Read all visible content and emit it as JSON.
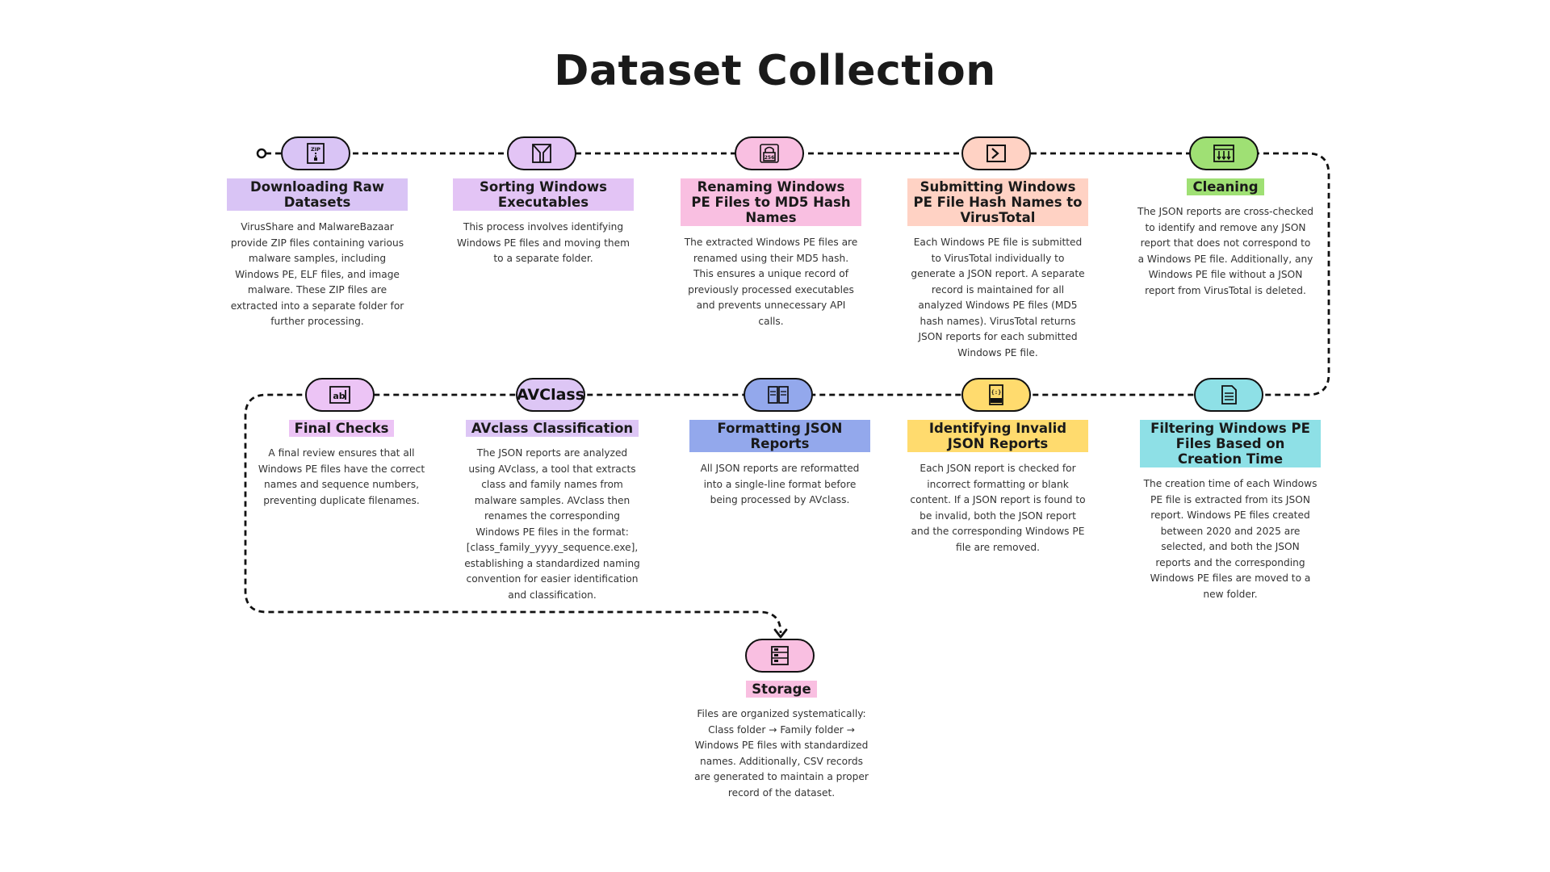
{
  "title": "Dataset Collection",
  "steps": [
    {
      "label": "Downloading Raw Datasets",
      "icon": "zip-file-icon",
      "color": "#d9c4f5",
      "desc": "VirusShare and MalwareBazaar provide ZIP files containing various malware samples, including Windows PE, ELF files, and image malware. These ZIP files are extracted into a separate folder for further processing."
    },
    {
      "label": "Sorting Windows Executables",
      "icon": "funnel-icon",
      "color": "#e3c4f5",
      "desc": "This process involves identifying Windows PE files and moving them to a separate folder."
    },
    {
      "label": "Renaming Windows PE Files to MD5 Hash Names",
      "icon": "hash-lock-icon",
      "color": "#f9bfe1",
      "desc": "The extracted Windows PE files are renamed using their MD5 hash. This ensures a unique record of previously processed executables and prevents unnecessary API calls."
    },
    {
      "label": "Submitting Windows PE File Hash Names to VirusTotal",
      "icon": "virustotal-icon",
      "color": "#ffd2c4",
      "desc": "Each Windows PE file is submitted to VirusTotal individually to generate a JSON report. A separate record is maintained for all analyzed Windows PE files (MD5 hash names). VirusTotal returns JSON reports for each submitted Windows PE file."
    },
    {
      "label": "Cleaning",
      "icon": "filter-bins-icon",
      "color": "#9fe074",
      "desc": "The JSON reports are cross-checked to identify and remove any JSON report that does not correspond to a Windows PE file. Additionally, any Windows PE file without a JSON report from VirusTotal is deleted."
    },
    {
      "label": "Filtering Windows PE Files Based on Creation Time",
      "icon": "document-icon",
      "color": "#8ee0e6",
      "desc": "The creation time of each Windows PE file is extracted from its JSON report. Windows PE files created between 2020 and 2025 are selected, and both the JSON reports and the corresponding Windows PE files are moved to a new folder."
    },
    {
      "label": "Identifying Invalid JSON Reports",
      "icon": "json-file-icon",
      "color": "#ffdb6e",
      "desc": "Each JSON report is checked for incorrect formatting or blank content. If a JSON report is found to be invalid, both the JSON report and the corresponding Windows PE file are removed."
    },
    {
      "label": "Formatting JSON Reports",
      "icon": "format-files-icon",
      "color": "#93a8ec",
      "desc": "All JSON reports are reformatted into a single-line format before being processed by AVclass."
    },
    {
      "label": "AVclass Classification",
      "icon": "",
      "nodeText": "AVClass",
      "color": "#ddc6f5",
      "desc": "The JSON reports are analyzed using AVclass, a tool that extracts class and family names from malware samples. AVclass then renames the corresponding Windows PE files in the format: [class_family_yyyy_sequence.exe], establishing a standardized naming convention for easier identification and classification."
    },
    {
      "label": "Final Checks",
      "icon": "text-box-icon",
      "color": "#ecc4f5",
      "desc": "A final review ensures that all Windows PE files have the correct names and sequence numbers, preventing duplicate filenames."
    },
    {
      "label": "Storage",
      "icon": "database-icon",
      "color": "#f9bfe1",
      "desc": "Files are organized systematically: Class folder → Family folder → Windows PE files with standardized names. Additionally, CSV records are generated to maintain a proper record of the dataset."
    }
  ]
}
